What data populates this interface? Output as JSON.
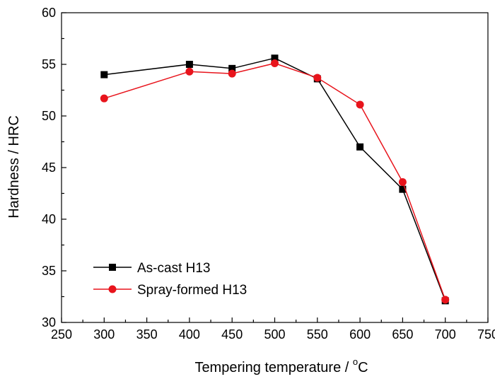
{
  "chart_data": {
    "type": "line",
    "title": "",
    "xlabel": "Tempering temperature / ",
    "xlabel_unit_super": "o",
    "xlabel_unit": "C",
    "ylabel": "Hardness / HRC",
    "xlim": [
      250,
      750
    ],
    "ylim": [
      30,
      60
    ],
    "xticks": [
      250,
      300,
      350,
      400,
      450,
      500,
      550,
      600,
      650,
      700,
      750
    ],
    "yticks": [
      30,
      35,
      40,
      45,
      50,
      55,
      60
    ],
    "grid": false,
    "legend_position": "bottom-left",
    "series": [
      {
        "name": "As-cast H13",
        "color": "#000000",
        "marker": "square",
        "x": [
          300,
          400,
          450,
          500,
          550,
          600,
          650,
          700
        ],
        "y": [
          54.0,
          55.0,
          54.6,
          55.6,
          53.6,
          47.0,
          42.9,
          32.1
        ]
      },
      {
        "name": "Spray-formed H13",
        "color": "#e8141c",
        "marker": "circle",
        "x": [
          300,
          400,
          450,
          500,
          550,
          600,
          650,
          700
        ],
        "y": [
          51.7,
          54.3,
          54.1,
          55.1,
          53.7,
          51.1,
          43.6,
          32.2
        ]
      }
    ]
  }
}
